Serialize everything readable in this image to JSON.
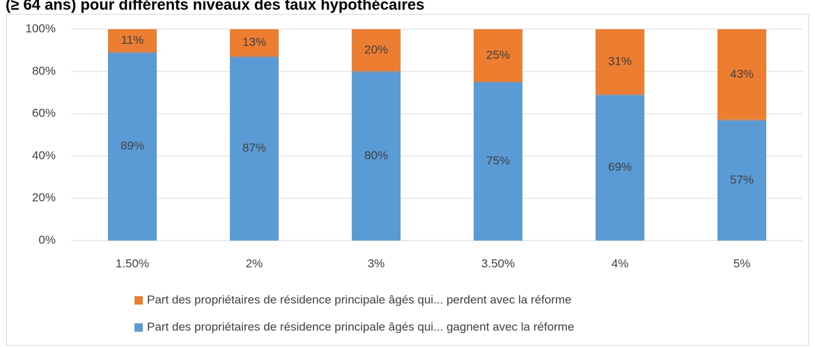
{
  "chart_data": {
    "type": "bar",
    "stacked": true,
    "title": "(≥ 64 ans) pour différents niveaux des taux hypothécaires",
    "categories": [
      "1.50%",
      "2%",
      "3%",
      "3.50%",
      "4%",
      "5%"
    ],
    "series": [
      {
        "name": "Part des propriétaires de résidence principale âgés qui... gagnent avec la réforme",
        "color": "#5b9bd5",
        "values": [
          89,
          87,
          80,
          75,
          69,
          57
        ],
        "value_labels": [
          "89%",
          "87%",
          "80%",
          "75%",
          "69%",
          "57%"
        ]
      },
      {
        "name": "Part des propriétaires de résidence principale âgés qui... perdent avec la réforme",
        "color": "#ed7d31",
        "values": [
          11,
          13,
          20,
          25,
          31,
          43
        ],
        "value_labels": [
          "11%",
          "13%",
          "20%",
          "25%",
          "31%",
          "43%"
        ]
      }
    ],
    "ylim": [
      0,
      100
    ],
    "yticks": [
      {
        "value": 0,
        "label": "0%"
      },
      {
        "value": 20,
        "label": "20%"
      },
      {
        "value": 40,
        "label": "40%"
      },
      {
        "value": 60,
        "label": "60%"
      },
      {
        "value": 80,
        "label": "80%"
      },
      {
        "value": 100,
        "label": "100%"
      }
    ],
    "grid": true
  }
}
